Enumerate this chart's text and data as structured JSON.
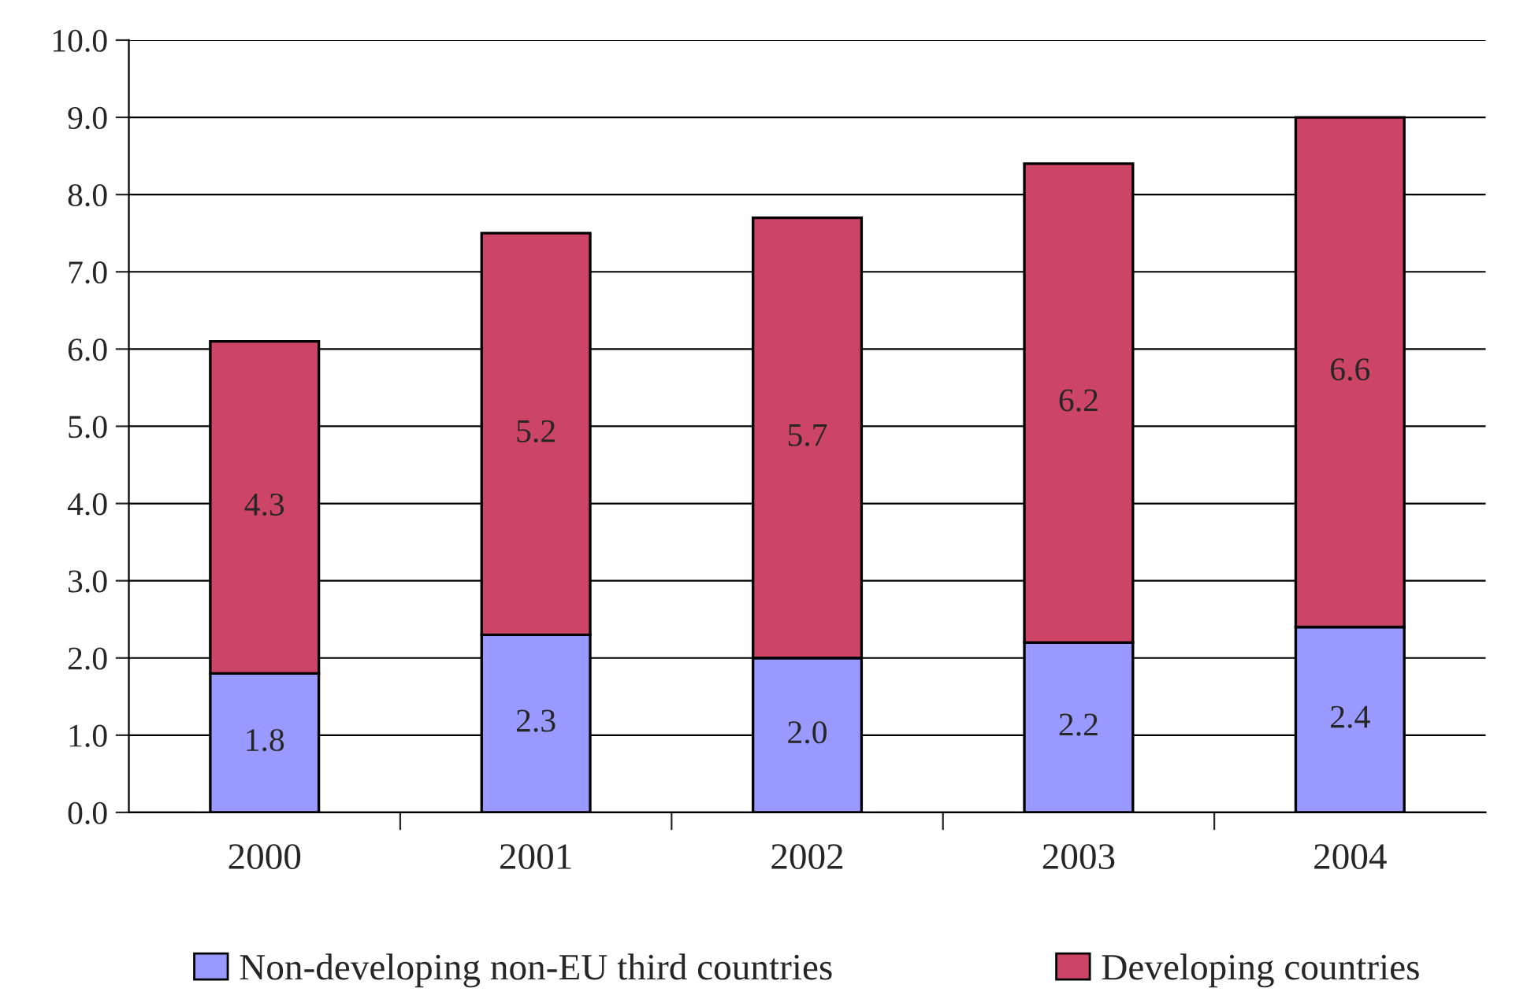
{
  "chart_data": {
    "type": "bar",
    "stacked": true,
    "categories": [
      "2000",
      "2001",
      "2002",
      "2003",
      "2004"
    ],
    "series": [
      {
        "name": "Non-developing non-EU third countries",
        "color": "#9999ff",
        "values": [
          1.8,
          2.3,
          2.0,
          2.2,
          2.4
        ],
        "value_labels": [
          "1.8",
          "2.3",
          "2.0",
          "2.2",
          "2.4"
        ]
      },
      {
        "name": "Developing countries",
        "color": "#cc4466",
        "values": [
          4.3,
          5.2,
          5.7,
          6.2,
          6.6
        ],
        "value_labels": [
          "4.3",
          "5.2",
          "5.7",
          "6.2",
          "6.6"
        ]
      }
    ],
    "ylim": [
      0,
      10
    ],
    "yticks": [
      {
        "value": 0,
        "label": "0.0"
      },
      {
        "value": 1,
        "label": "1.0"
      },
      {
        "value": 2,
        "label": "2.0"
      },
      {
        "value": 3,
        "label": "3.0"
      },
      {
        "value": 4,
        "label": "4.0"
      },
      {
        "value": 5,
        "label": "5.0"
      },
      {
        "value": 6,
        "label": "6.0"
      },
      {
        "value": 7,
        "label": "7.0"
      },
      {
        "value": 8,
        "label": "8.0"
      },
      {
        "value": 9,
        "label": "9.0"
      },
      {
        "value": 10,
        "label": "10.0"
      }
    ],
    "grid": "y",
    "legend": "bottom"
  }
}
